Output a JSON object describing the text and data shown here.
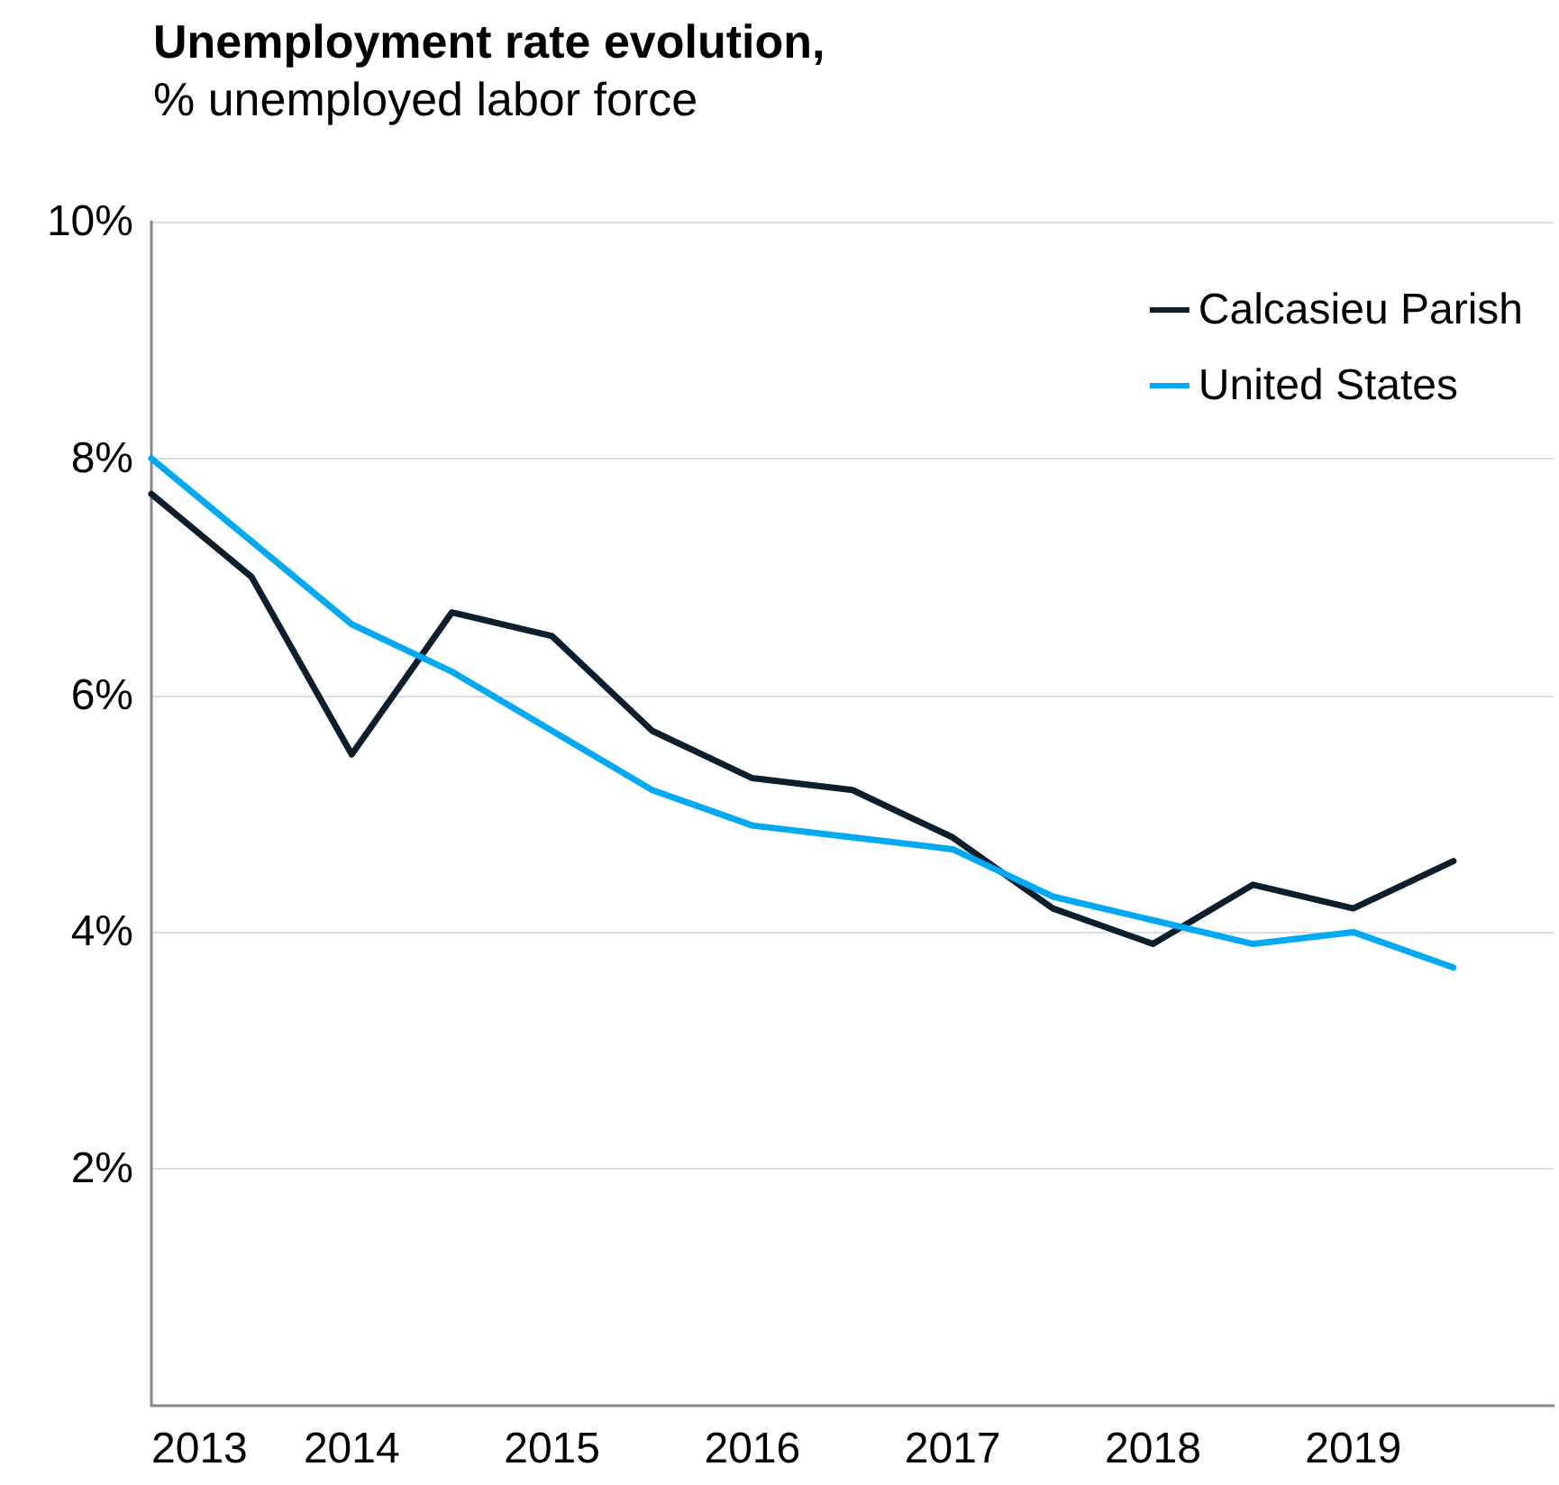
{
  "chart_data": {
    "type": "line",
    "title": "Unemployment rate evolution,",
    "subtitle": "% unemployed labor force",
    "x": [
      2013,
      2013.5,
      2014,
      2014.5,
      2015,
      2015.5,
      2016,
      2016.5,
      2017,
      2017.5,
      2018,
      2018.5,
      2019,
      2019.5
    ],
    "series": [
      {
        "name": "Calcasieu Parish",
        "color": "#0d1f2d",
        "values": [
          7.7,
          7.0,
          5.5,
          6.7,
          6.5,
          5.7,
          5.3,
          5.2,
          4.8,
          4.2,
          3.9,
          4.4,
          4.2,
          4.6
        ]
      },
      {
        "name": "United States",
        "color": "#00a9f4",
        "values": [
          8.0,
          7.3,
          6.6,
          6.2,
          5.7,
          5.2,
          4.9,
          4.8,
          4.7,
          4.3,
          4.1,
          3.9,
          4.0,
          3.7
        ]
      }
    ],
    "xlim": [
      2013,
      2020
    ],
    "xticks": [
      2013,
      2014,
      2015,
      2016,
      2017,
      2018,
      2019
    ],
    "ylim": [
      0,
      10
    ],
    "yticks": [
      {
        "value": 2,
        "label": "2%"
      },
      {
        "value": 4,
        "label": "4%"
      },
      {
        "value": 6,
        "label": "6%"
      },
      {
        "value": 8,
        "label": "8%"
      },
      {
        "value": 10,
        "label": "10%"
      }
    ],
    "grid": "y",
    "legend": "top right",
    "marker": "none",
    "line_style": "solid"
  }
}
